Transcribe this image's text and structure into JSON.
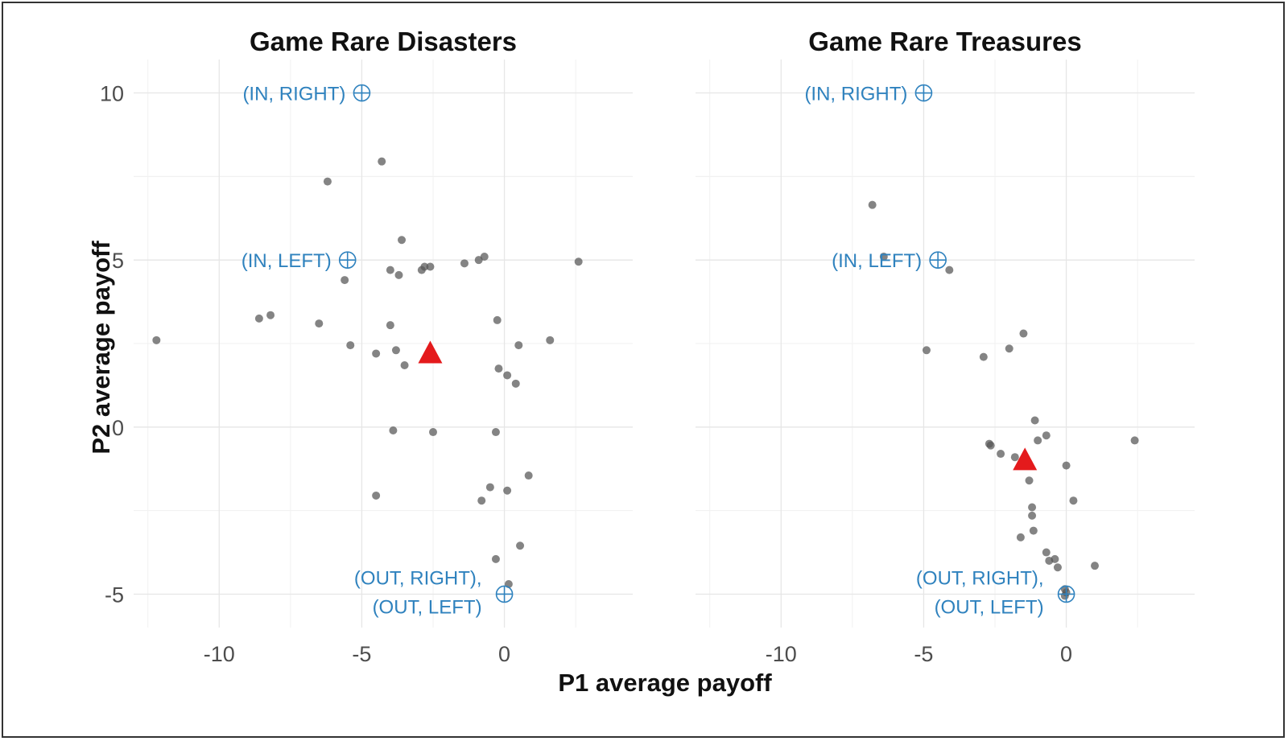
{
  "chart_data": {
    "type": "scatter",
    "xlabel": "P1 average payoff",
    "ylabel": "P2 average payoff",
    "xlim": [
      -13,
      4.5
    ],
    "ylim": [
      -6,
      11
    ],
    "xticks": [
      -10,
      -5,
      0
    ],
    "yticks": [
      10,
      5,
      0,
      -5
    ],
    "grid": true,
    "colors": {
      "points": "#555555",
      "mean": "#e41a1c",
      "annotation": "#2f82be"
    },
    "panels": [
      {
        "title": "Game Rare Disasters",
        "points": [
          [
            -12.2,
            2.6
          ],
          [
            -8.6,
            3.25
          ],
          [
            -8.2,
            3.35
          ],
          [
            -6.5,
            3.1
          ],
          [
            -6.2,
            7.35
          ],
          [
            -5.6,
            4.4
          ],
          [
            -5.4,
            2.45
          ],
          [
            -4.3,
            7.95
          ],
          [
            -4.5,
            2.2
          ],
          [
            -4.5,
            -2.05
          ],
          [
            -4.0,
            4.7
          ],
          [
            -4.0,
            3.05
          ],
          [
            -3.9,
            -0.1
          ],
          [
            -3.8,
            2.3
          ],
          [
            -3.6,
            5.6
          ],
          [
            -3.7,
            4.55
          ],
          [
            -3.5,
            1.85
          ],
          [
            -2.9,
            4.7
          ],
          [
            -2.8,
            4.8
          ],
          [
            -2.6,
            4.8
          ],
          [
            -2.5,
            -0.15
          ],
          [
            -1.4,
            4.9
          ],
          [
            -0.9,
            5.0
          ],
          [
            -0.7,
            5.1
          ],
          [
            -0.5,
            -1.8
          ],
          [
            -0.8,
            -2.2
          ],
          [
            -0.3,
            -0.15
          ],
          [
            -0.25,
            3.2
          ],
          [
            -0.2,
            1.75
          ],
          [
            -0.3,
            -3.95
          ],
          [
            0.1,
            1.55
          ],
          [
            0.1,
            -1.9
          ],
          [
            0.15,
            -4.7
          ],
          [
            0.4,
            1.3
          ],
          [
            0.5,
            2.45
          ],
          [
            0.55,
            -3.55
          ],
          [
            0.85,
            -1.45
          ],
          [
            1.6,
            2.6
          ],
          [
            2.6,
            4.95
          ]
        ],
        "mean": [
          -2.6,
          2.2
        ],
        "annotations": [
          {
            "x": -5,
            "y": 10,
            "lines": [
              "(IN, RIGHT)"
            ]
          },
          {
            "x": -5.5,
            "y": 5,
            "lines": [
              "(IN, LEFT)"
            ]
          },
          {
            "x": 0,
            "y": -5,
            "lines": [
              "(OUT, RIGHT),",
              "(OUT, LEFT)"
            ]
          }
        ]
      },
      {
        "title": "Game Rare Treasures",
        "points": [
          [
            -6.8,
            6.65
          ],
          [
            -6.4,
            5.1
          ],
          [
            -4.9,
            2.3
          ],
          [
            -4.1,
            4.7
          ],
          [
            -2.9,
            2.1
          ],
          [
            -2.7,
            -0.5
          ],
          [
            -2.65,
            -0.55
          ],
          [
            -2.3,
            -0.8
          ],
          [
            -2.0,
            2.35
          ],
          [
            -1.8,
            -0.9
          ],
          [
            -1.6,
            -3.3
          ],
          [
            -1.5,
            2.8
          ],
          [
            -1.3,
            -1.6
          ],
          [
            -1.2,
            -2.4
          ],
          [
            -1.15,
            -3.1
          ],
          [
            -1.2,
            -2.65
          ],
          [
            -1.1,
            0.2
          ],
          [
            -1.0,
            -0.4
          ],
          [
            -0.7,
            -0.25
          ],
          [
            -0.7,
            -3.75
          ],
          [
            -0.6,
            -4.0
          ],
          [
            -0.4,
            -3.95
          ],
          [
            -0.3,
            -4.2
          ],
          [
            -0.05,
            -4.85
          ],
          [
            0.0,
            -4.95
          ],
          [
            -0.05,
            -5.05
          ],
          [
            0.0,
            -1.15
          ],
          [
            0.25,
            -2.2
          ],
          [
            1.0,
            -4.15
          ],
          [
            2.4,
            -0.4
          ]
        ],
        "mean": [
          -1.45,
          -1.0
        ],
        "annotations": [
          {
            "x": -5,
            "y": 10,
            "lines": [
              "(IN, RIGHT)"
            ]
          },
          {
            "x": -4.5,
            "y": 5,
            "lines": [
              "(IN, LEFT)"
            ]
          },
          {
            "x": 0,
            "y": -5,
            "lines": [
              "(OUT, RIGHT),",
              "(OUT, LEFT)"
            ]
          }
        ]
      }
    ]
  }
}
